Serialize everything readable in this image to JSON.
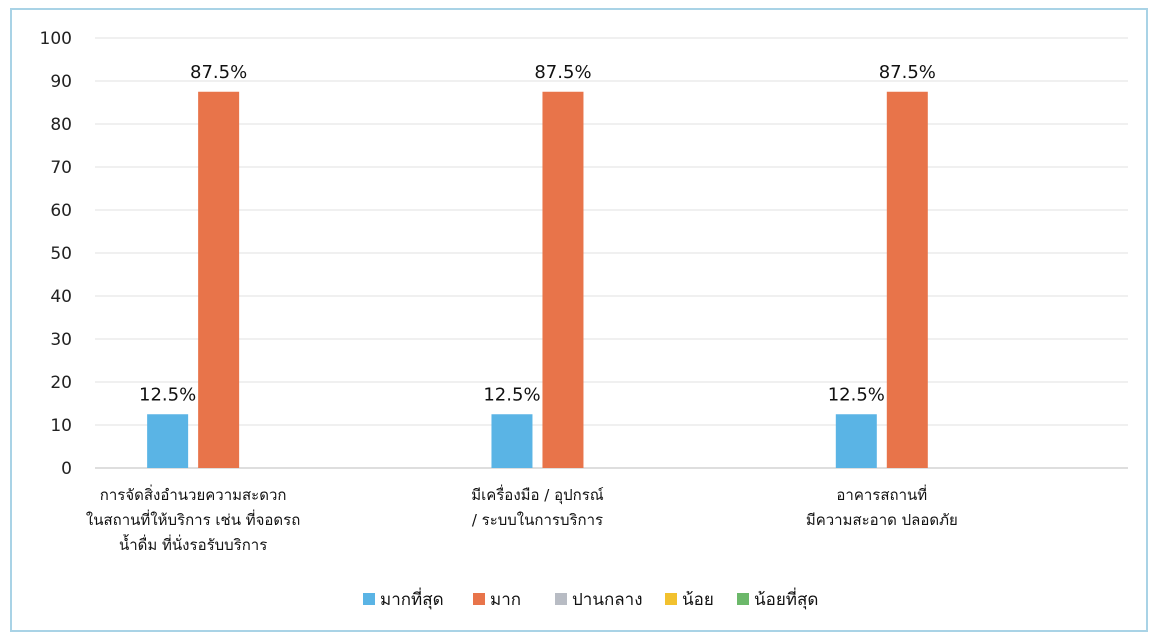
{
  "chart_data": {
    "type": "bar",
    "categories": [
      [
        "การจัดสิ่งอำนวยความสะดวก",
        "ในสถานที่ให้บริการ เช่น ที่จอดรถ",
        "น้ำดื่ม ที่นั่งรอรับบริการ"
      ],
      [
        "มีเครื่องมือ / อุปกรณ์",
        "/ ระบบในการบริการ"
      ],
      [
        "อาคารสถานที่",
        "มีความสะอาด ปลอดภัย"
      ]
    ],
    "series": [
      {
        "name": "มากที่สุด",
        "color": "#5ab4e5",
        "values": [
          12.5,
          12.5,
          12.5
        ],
        "labels": [
          "12.5%",
          "12.5%",
          "12.5%"
        ]
      },
      {
        "name": "มาก",
        "color": "#e8744a",
        "values": [
          87.5,
          87.5,
          87.5
        ],
        "labels": [
          "87.5%",
          "87.5%",
          "87.5%"
        ]
      },
      {
        "name": "ปานกลาง",
        "color": "#b8bcc4",
        "values": [
          0,
          0,
          0
        ],
        "labels": []
      },
      {
        "name": "น้อย",
        "color": "#f2c12e",
        "values": [
          0,
          0,
          0
        ],
        "labels": []
      },
      {
        "name": "น้อยที่สุด",
        "color": "#6cb86a",
        "values": [
          0,
          0,
          0
        ],
        "labels": []
      }
    ],
    "ylim": [
      0,
      100
    ],
    "yticks": [
      0,
      10,
      20,
      30,
      40,
      50,
      60,
      70,
      80,
      90,
      100
    ],
    "grid": true,
    "legend": "bottom",
    "title": "",
    "xlabel": "",
    "ylabel": ""
  }
}
